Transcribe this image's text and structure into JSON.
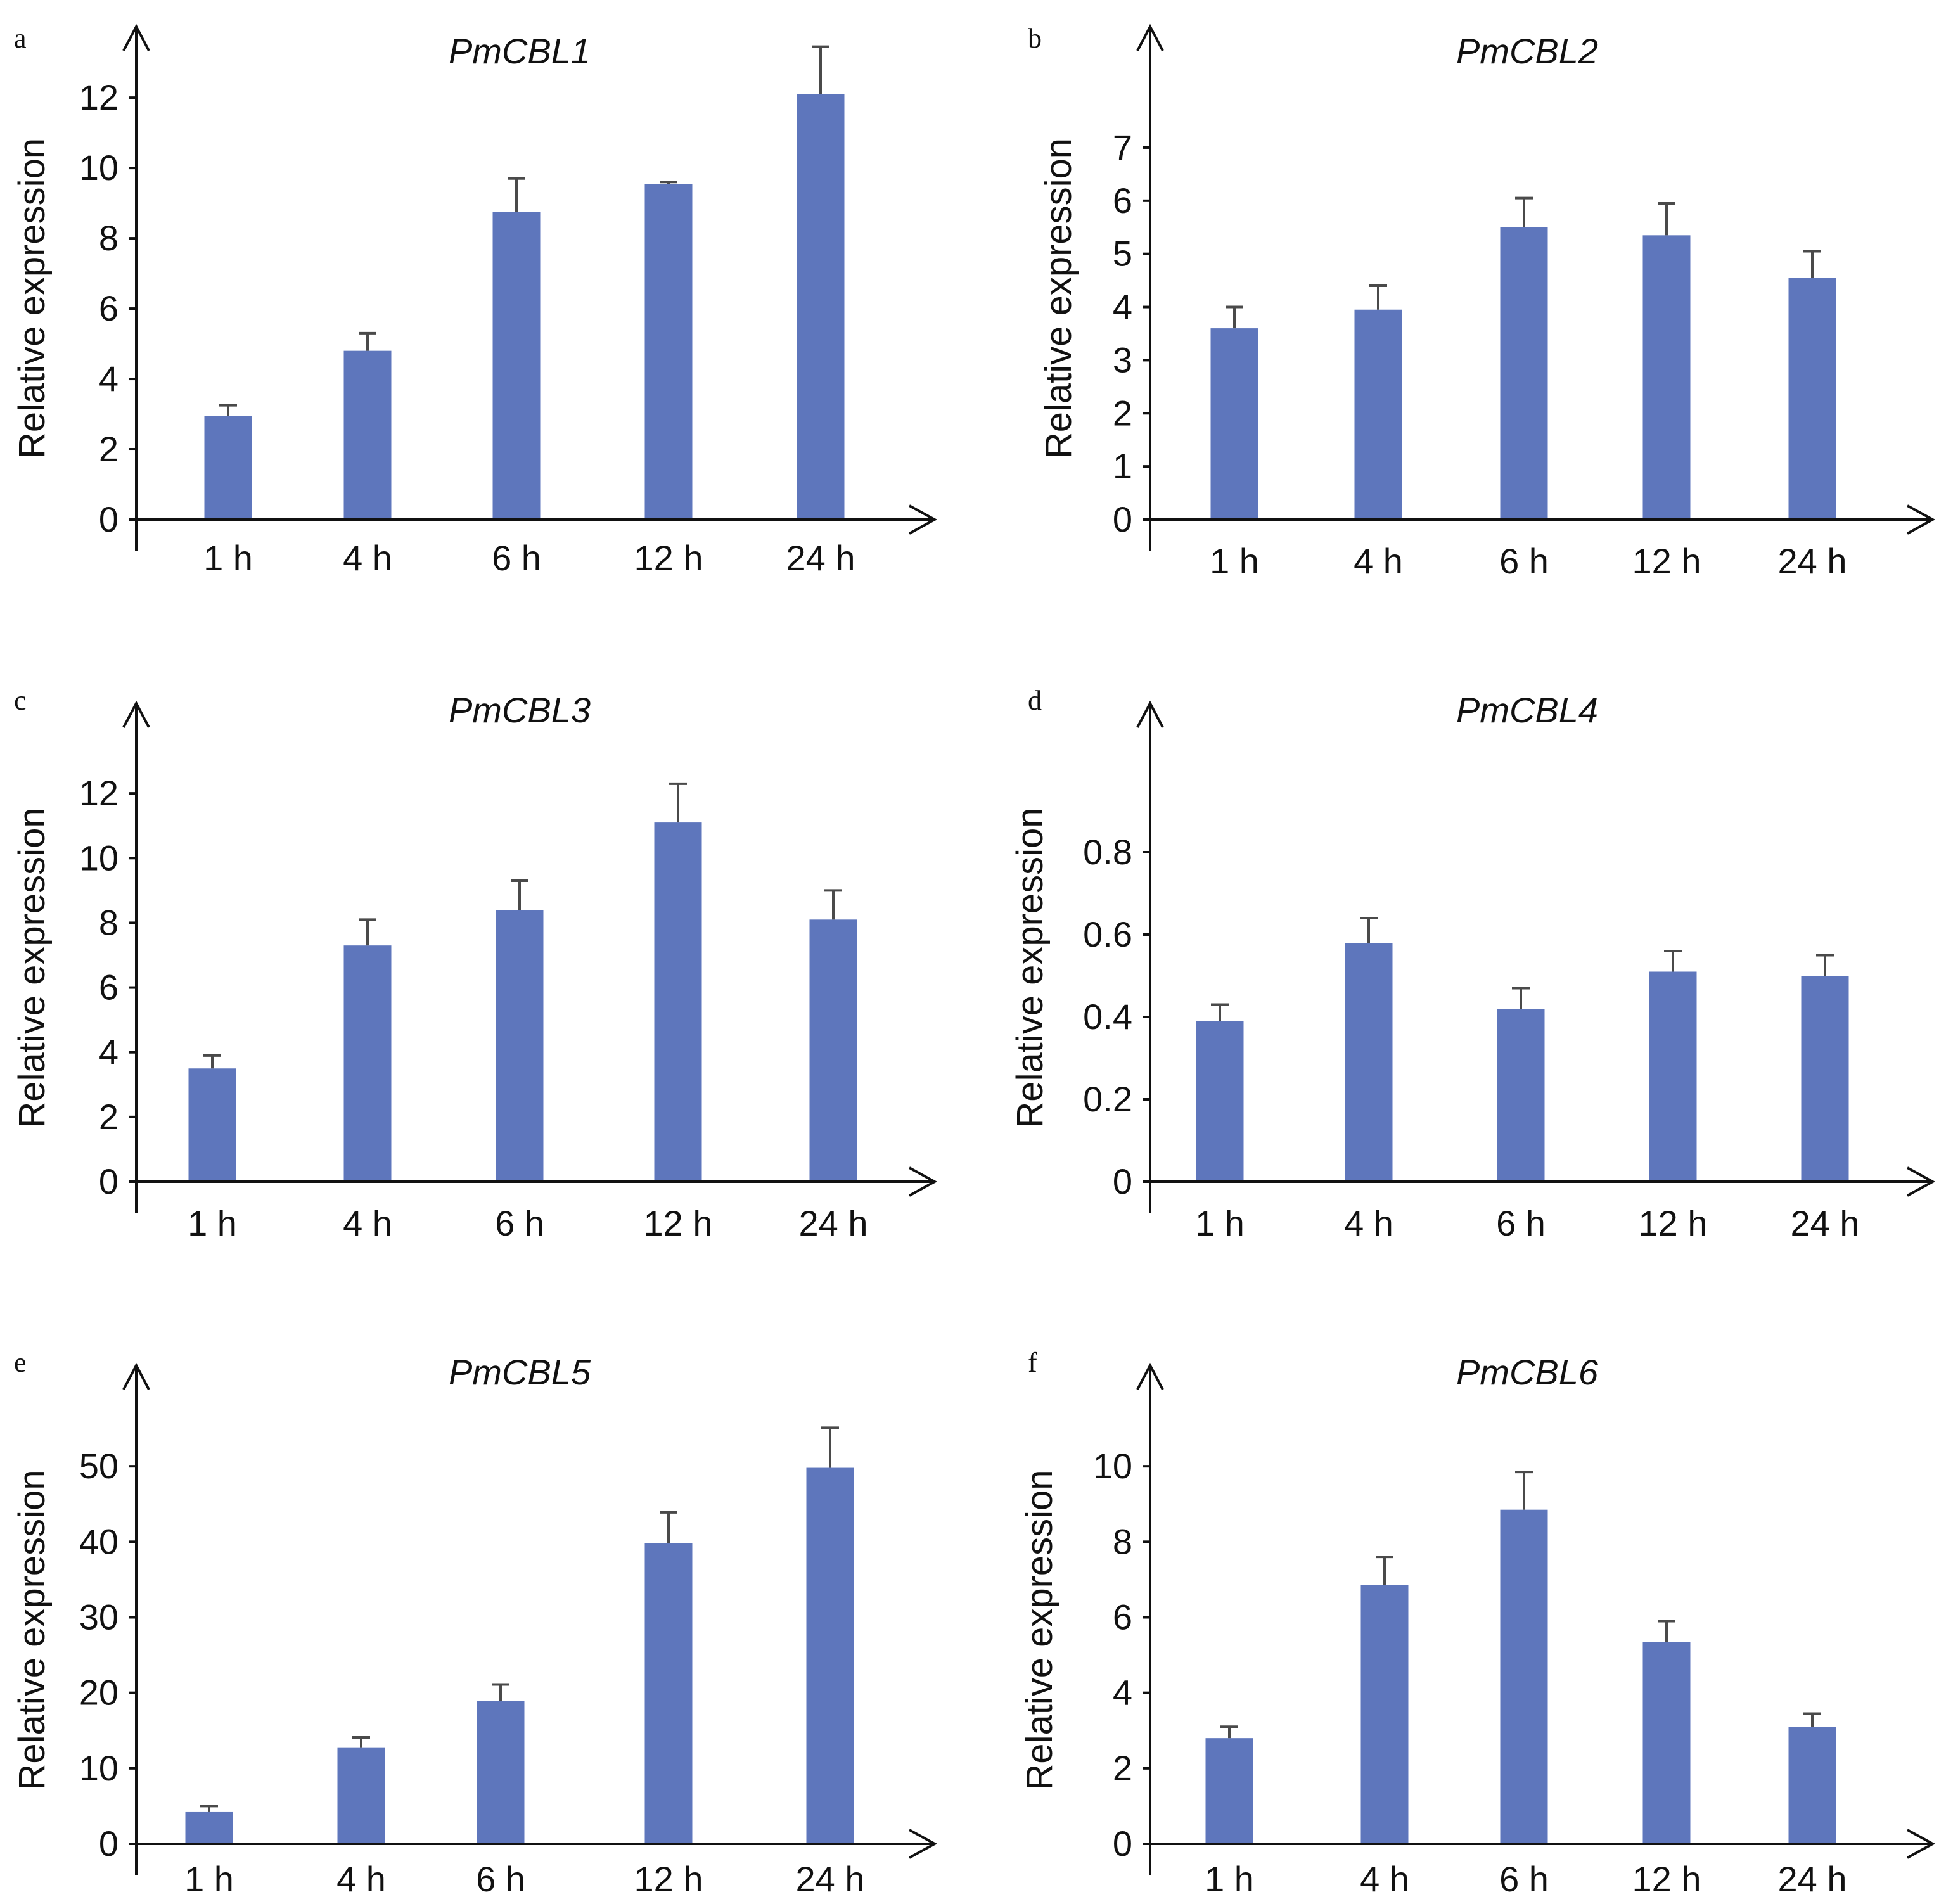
{
  "chart_data": [
    {
      "panel": "a",
      "type": "bar",
      "title": "PmCBL1",
      "ylabel": "Relative expression",
      "categories": [
        "1 h",
        "4 h",
        "6 h",
        "12 h",
        "24 h"
      ],
      "values": [
        2.95,
        4.8,
        8.75,
        9.55,
        12.1
      ],
      "errors": [
        0.3,
        0.5,
        0.95,
        0.05,
        1.35
      ],
      "yticks": [
        "0",
        "2",
        "4",
        "6",
        "8",
        "10",
        "12"
      ],
      "ylim": [
        0,
        13.3
      ],
      "color": "#5E76BC"
    },
    {
      "panel": "b",
      "type": "bar",
      "title": "PmCBL2",
      "ylabel": "Relative expression",
      "categories": [
        "1 h",
        "4 h",
        "6 h",
        "12 h",
        "24 h"
      ],
      "values": [
        3.6,
        3.95,
        5.5,
        5.35,
        4.55
      ],
      "errors": [
        0.4,
        0.45,
        0.55,
        0.6,
        0.5
      ],
      "yticks": [
        "0",
        "1",
        "2",
        "3",
        "4",
        "5",
        "6",
        "7"
      ],
      "ylim": [
        0,
        8.8
      ],
      "color": "#5E76BC"
    },
    {
      "panel": "c",
      "type": "bar",
      "title": "PmCBL3",
      "ylabel": "Relative expression",
      "categories": [
        "1 h",
        "4 h",
        "6 h",
        "12 h",
        "24 h"
      ],
      "values": [
        3.5,
        7.3,
        8.4,
        11.1,
        8.1
      ],
      "errors": [
        0.4,
        0.8,
        0.9,
        1.2,
        0.9
      ],
      "yticks": [
        "0",
        "2",
        "4",
        "6",
        "8",
        "10",
        "12"
      ],
      "ylim": [
        0,
        14.0
      ],
      "color": "#5E76BC"
    },
    {
      "panel": "d",
      "type": "bar",
      "title": "PmCBL4",
      "ylabel": "Relative expression",
      "categories": [
        "1 h",
        "4 h",
        "6 h",
        "12 h",
        "24 h"
      ],
      "values": [
        0.39,
        0.58,
        0.42,
        0.51,
        0.5
      ],
      "errors": [
        0.04,
        0.06,
        0.05,
        0.05,
        0.05
      ],
      "yticks": [
        "0",
        "0.2",
        "0.4",
        "0.6",
        "0.8"
      ],
      "ylim": [
        0,
        1.1
      ],
      "color": "#5E76BC"
    },
    {
      "panel": "e",
      "type": "bar",
      "title": "PmCBL5",
      "ylabel": "Relative expression",
      "categories": [
        "1 h",
        "4 h",
        "6 h",
        "12 h",
        "24 h"
      ],
      "values": [
        4.2,
        12.7,
        18.9,
        39.8,
        49.8
      ],
      "errors": [
        0.8,
        1.4,
        2.2,
        4.1,
        5.3
      ],
      "yticks": [
        "0",
        "10",
        "20",
        "30",
        "40",
        "50"
      ],
      "ylim": [
        0,
        60
      ],
      "color": "#5E76BC"
    },
    {
      "panel": "f",
      "type": "bar",
      "title": "PmCBL6",
      "ylabel": "Relative expression",
      "categories": [
        "1 h",
        "4 h",
        "6 h",
        "12 h",
        "24 h"
      ],
      "values": [
        2.8,
        6.85,
        8.85,
        5.35,
        3.1
      ],
      "errors": [
        0.3,
        0.75,
        1.0,
        0.55,
        0.35
      ],
      "yticks": [
        "0",
        "2",
        "4",
        "6",
        "8",
        "10"
      ],
      "ylim": [
        0,
        12.0
      ],
      "color": "#5E76BC"
    }
  ]
}
